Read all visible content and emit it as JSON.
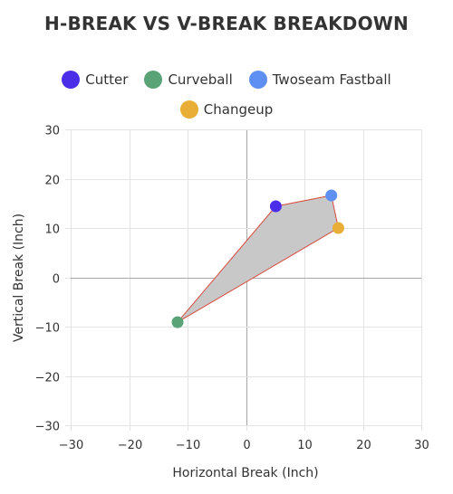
{
  "chart_data": {
    "type": "scatter",
    "title": "H-BREAK VS V-BREAK BREAKDOWN",
    "xlabel": "Horizontal Break (Inch)",
    "ylabel": "Vertical Break (Inch)",
    "xlim": [
      -30,
      30
    ],
    "ylim": [
      -30,
      30
    ],
    "x_ticks": [
      -30,
      -20,
      -10,
      0,
      10,
      20,
      30
    ],
    "y_ticks": [
      -30,
      -20,
      -10,
      0,
      10,
      20,
      30
    ],
    "grid": true,
    "legend_position": "top",
    "series": [
      {
        "name": "Cutter",
        "color": "#4b2ee8",
        "x": 5.1,
        "y": 14.4
      },
      {
        "name": "Curveball",
        "color": "#5aa376",
        "x": -11.7,
        "y": -9.1
      },
      {
        "name": "Twoseam Fastball",
        "color": "#5e8ff2",
        "x": 14.6,
        "y": 16.6
      },
      {
        "name": "Changeup",
        "color": "#e9ae38",
        "x": 15.8,
        "y": 10.0
      }
    ],
    "hull_order": [
      "Curveball",
      "Cutter",
      "Twoseam Fastball",
      "Changeup"
    ],
    "hull_fill": "#c8c8c8",
    "hull_stroke": "#d64a3c"
  }
}
